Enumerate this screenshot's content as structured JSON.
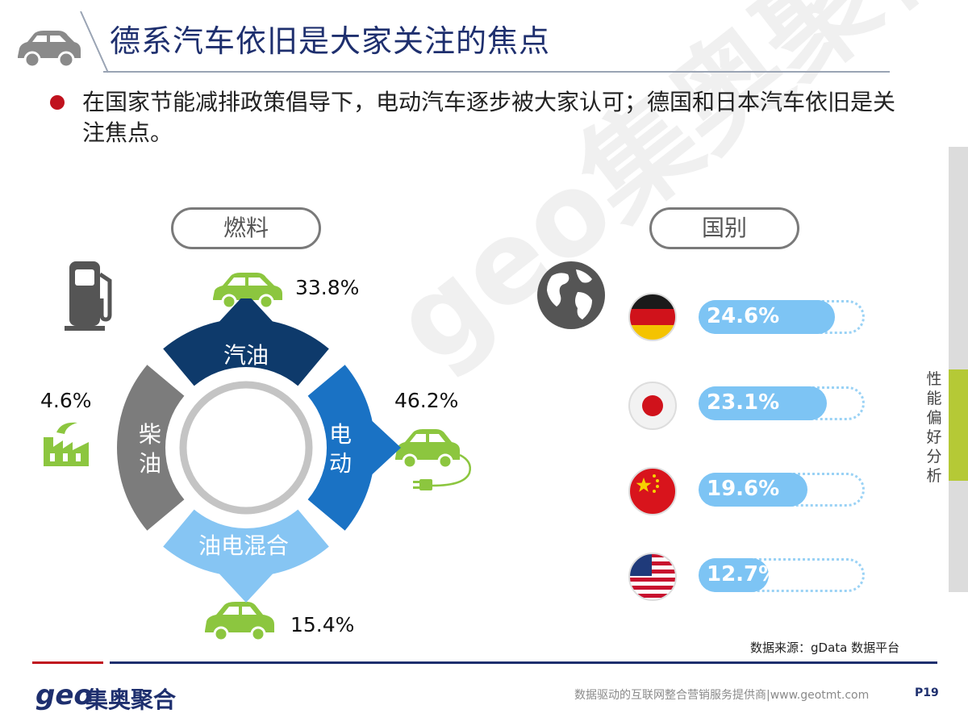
{
  "title": "德系汽车依旧是大家关注的焦点",
  "bullet": "在国家节能减排政策倡导下，电动汽车逐步被大家认可；德国和日本汽车依旧是关注焦点。",
  "sections": {
    "fuel": "燃料",
    "country": "国别"
  },
  "side_tab": "性能偏好分析",
  "watermark": "geo集奥聚合",
  "source": "数据来源：gData  数据平台",
  "footer": {
    "logo_geo": "geo",
    "logo_cn": "集奥聚合",
    "tagline": "数据驱动的互联网整合营销服务提供商|www.geotmt.com",
    "page": "P19"
  },
  "colors": {
    "petrol": "#0e3a6b",
    "electric": "#1a72c4",
    "hybrid": "#86c5f3",
    "diesel": "#7c7c7c",
    "icon_green": "#8cc63f",
    "bar_fill": "#7dc4f4"
  },
  "icons": [
    "car-icon",
    "fuel-pump-icon",
    "factory-icon",
    "electric-car-icon",
    "globe-icon",
    "germany-flag-icon",
    "japan-flag-icon",
    "china-flag-icon",
    "usa-flag-icon"
  ],
  "chart_data": [
    {
      "type": "pie",
      "categories": [
        "汽油",
        "电动",
        "油电混合",
        "柴油"
      ],
      "values": [
        33.8,
        46.2,
        15.4,
        4.6
      ],
      "value_labels": [
        "33.8%",
        "46.2%",
        "15.4%",
        "4.6%"
      ],
      "unit": "%"
    },
    {
      "type": "bar",
      "orientation": "horizontal",
      "categories": [
        "germany",
        "japan",
        "china",
        "usa"
      ],
      "values": [
        24.6,
        23.1,
        19.6,
        12.7
      ],
      "value_labels": [
        "24.6%",
        "23.1%",
        "19.6%",
        "12.7%"
      ],
      "unit": "%"
    }
  ]
}
